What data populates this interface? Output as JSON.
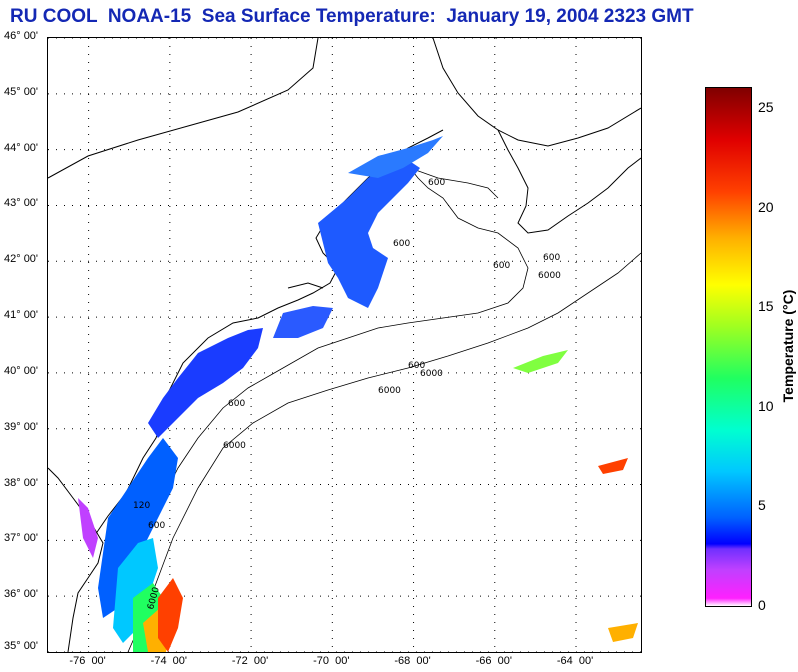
{
  "title": "RU COOL  NOAA-15  Sea Surface Temperature:  January 19, 2004 2323 GMT",
  "map": {
    "lat_labels": [
      {
        "value": 46,
        "text": "46° 00'"
      },
      {
        "value": 45,
        "text": "45° 00'"
      },
      {
        "value": 44,
        "text": "44° 00'"
      },
      {
        "value": 43,
        "text": "43° 00'"
      },
      {
        "value": 42,
        "text": "42° 00'"
      },
      {
        "value": 41,
        "text": "41° 00'"
      },
      {
        "value": 40,
        "text": "40° 00'"
      },
      {
        "value": 39,
        "text": "39° 00'"
      },
      {
        "value": 38,
        "text": "38° 00'"
      },
      {
        "value": 37,
        "text": "37° 00'"
      },
      {
        "value": 36,
        "text": "36° 00'"
      },
      {
        "value": 35,
        "text": "35° 00'"
      }
    ],
    "lon_labels": [
      {
        "value": -76,
        "text": "-76  00'"
      },
      {
        "value": -74,
        "text": "-74  00'"
      },
      {
        "value": -72,
        "text": "-72  00'"
      },
      {
        "value": -70,
        "text": "-70  00'"
      },
      {
        "value": -68,
        "text": "-68  00'"
      },
      {
        "value": -66,
        "text": "-66  00'"
      },
      {
        "value": -64,
        "text": "-64  00'"
      }
    ],
    "lat_range": [
      35,
      46
    ],
    "lon_range": [
      -77,
      -62.4
    ],
    "grid": "dotted",
    "isobath_labels": [
      "600",
      "600",
      "600",
      "600",
      "6000",
      "6000",
      "6000",
      "600",
      "6000",
      "600",
      "600",
      "6000",
      "120"
    ],
    "land_color": "#ffffff",
    "ocean_nodata_color": "#fdfdf6"
  },
  "colorbar": {
    "label": "Temperature (°C)",
    "range": [
      0,
      26
    ],
    "ticks": [
      {
        "value": 0,
        "text": "0"
      },
      {
        "value": 5,
        "text": "5"
      },
      {
        "value": 10,
        "text": "10"
      },
      {
        "value": 15,
        "text": "15"
      },
      {
        "value": 20,
        "text": "20"
      },
      {
        "value": 25,
        "text": "25"
      }
    ],
    "colors": [
      "#ff20ff",
      "#7030ff",
      "#0000ff",
      "#00c8ff",
      "#20ff60",
      "#ffff00",
      "#ff4000",
      "#800000"
    ]
  }
}
